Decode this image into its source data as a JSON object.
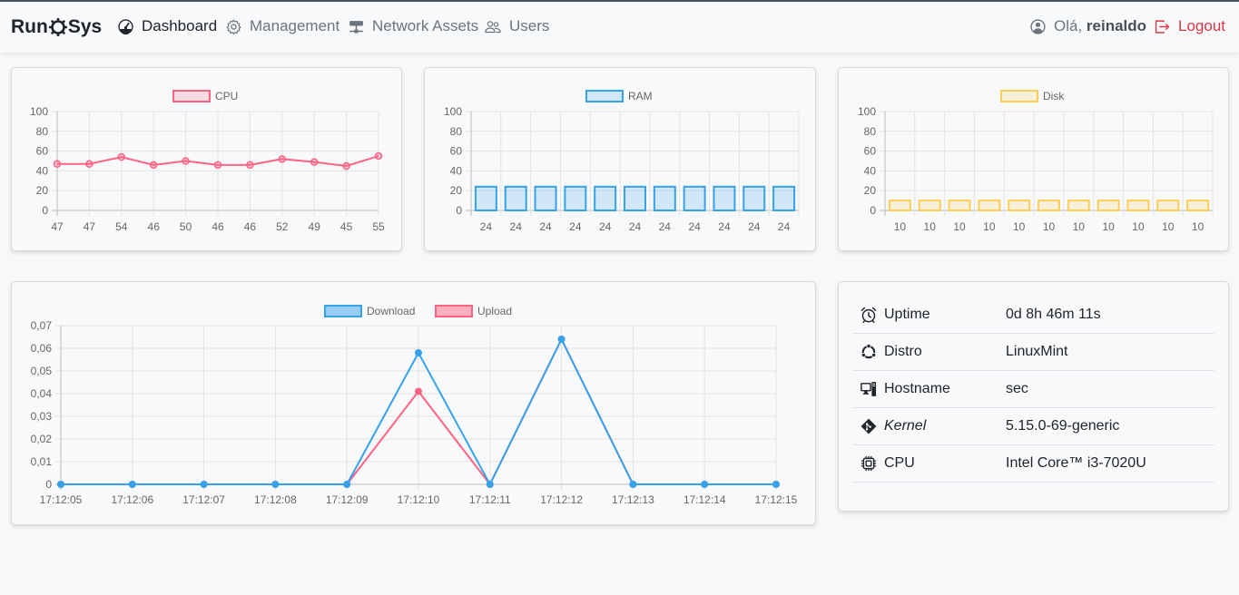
{
  "navbar": {
    "brand_left": "Run",
    "brand_right": "Sys",
    "items": [
      {
        "label": "Dashboard",
        "icon": "speedometer-icon",
        "active": true
      },
      {
        "label": "Management",
        "icon": "gear-icon"
      },
      {
        "label": "Network Assets",
        "icon": "hdd-network-icon"
      },
      {
        "label": "Users",
        "icon": "people-icon"
      }
    ],
    "greeting": "Olá,",
    "username": "reinaldo",
    "logout": "Logout"
  },
  "cpu_chart": {
    "type": "line",
    "legend": "CPU",
    "color": "#ff6384",
    "categories": [
      "47",
      "47",
      "54",
      "46",
      "50",
      "46",
      "46",
      "52",
      "49",
      "45",
      "55"
    ],
    "values": [
      47,
      47,
      54,
      46,
      50,
      46,
      46,
      52,
      49,
      45,
      55
    ],
    "ylim": [
      0,
      100
    ],
    "yticks": [
      "100",
      "80",
      "60",
      "40",
      "20",
      "0"
    ]
  },
  "ram_chart": {
    "type": "bar",
    "legend": "RAM",
    "color": "#36a2eb",
    "categories": [
      "24",
      "24",
      "24",
      "24",
      "24",
      "24",
      "24",
      "24",
      "24",
      "24",
      "24"
    ],
    "values": [
      24,
      24,
      24,
      24,
      24,
      24,
      24,
      24,
      24,
      24,
      24
    ],
    "ylim": [
      0,
      100
    ],
    "yticks": [
      "100",
      "80",
      "60",
      "40",
      "20",
      "0"
    ]
  },
  "disk_chart": {
    "type": "bar",
    "legend": "Disk",
    "color": "#ffcd56",
    "categories": [
      "10",
      "10",
      "10",
      "10",
      "10",
      "10",
      "10",
      "10",
      "10",
      "10",
      "10"
    ],
    "values": [
      10,
      10,
      10,
      10,
      10,
      10,
      10,
      10,
      10,
      10,
      10
    ],
    "ylim": [
      0,
      100
    ],
    "yticks": [
      "100",
      "80",
      "60",
      "40",
      "20",
      "0"
    ]
  },
  "net_chart": {
    "type": "line",
    "categories": [
      "17:12:05",
      "17:12:06",
      "17:12:07",
      "17:12:08",
      "17:12:09",
      "17:12:10",
      "17:12:11",
      "17:12:12",
      "17:12:13",
      "17:12:14",
      "17:12:15"
    ],
    "series": [
      {
        "name": "Download",
        "color": "#36a2eb",
        "values": [
          0,
          0,
          0,
          0,
          0,
          0.058,
          0,
          0.064,
          0,
          0,
          0
        ]
      },
      {
        "name": "Upload",
        "color": "#ff6384",
        "values": [
          0,
          0,
          0,
          0,
          0,
          0.041,
          0,
          0.064,
          0,
          0,
          0
        ]
      }
    ],
    "ylim": [
      0,
      0.07
    ],
    "yticks": [
      "0,07",
      "0,06",
      "0,05",
      "0,04",
      "0,03",
      "0,02",
      "0,01",
      "0"
    ]
  },
  "system_info": [
    {
      "icon": "alarm-icon",
      "label": "Uptime",
      "value": "0d 8h 46m 11s"
    },
    {
      "icon": "ubuntu-icon",
      "label": "Distro",
      "value": "LinuxMint"
    },
    {
      "icon": "pc-display-icon",
      "label": "Hostname",
      "value": "sec"
    },
    {
      "icon": "git-icon",
      "label": "Kernel",
      "value": "5.15.0-69-generic",
      "italic": true
    },
    {
      "icon": "cpu-icon",
      "label": "CPU",
      "value": "Intel Core™ i3-7020U"
    }
  ]
}
